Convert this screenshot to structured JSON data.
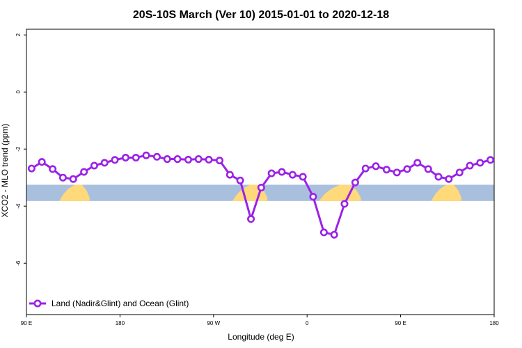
{
  "chart_data": {
    "type": "line",
    "title": "20S-10S March (Ver 10)   2015-01-01 to 2020-12-18",
    "xlabel": "Longitude (deg E)",
    "ylabel": "XCO2 - MLO trend (ppm)",
    "xlim": [
      0,
      100
    ],
    "ylim": [
      -7.8,
      2.2
    ],
    "x_ticks": [
      {
        "value": 0,
        "label": "90 E"
      },
      {
        "value": 20,
        "label": "180"
      },
      {
        "value": 40,
        "label": "90 W"
      },
      {
        "value": 60,
        "label": "0"
      },
      {
        "value": 80,
        "label": "90 E"
      },
      {
        "value": 100,
        "label": "180"
      }
    ],
    "y_ticks": [
      {
        "value": 2,
        "label": "2"
      },
      {
        "value": 0,
        "label": "0"
      },
      {
        "value": -2,
        "label": "-2"
      },
      {
        "value": -4,
        "label": "-4"
      },
      {
        "value": -6,
        "label": "-6"
      }
    ],
    "grid": false,
    "legend": {
      "position": "bottom-left"
    },
    "land_ocean_band": {
      "y_range": [
        -3.82,
        -3.25
      ],
      "ocean_color": "#a9bfde",
      "land_color": "#ffd97a",
      "land_segments": [
        {
          "x_range": [
            7,
            13.5
          ]
        },
        {
          "x_range": [
            44,
            51.5
          ]
        },
        {
          "x_range": [
            62.5,
            71.5
          ]
        },
        {
          "x_range": [
            86.5,
            93
          ]
        }
      ]
    },
    "series": [
      {
        "name": "Land (Nadir&Glint) and Ocean (Glint)",
        "color": "#9b22e6",
        "x": [
          1.1,
          3.3,
          5.6,
          7.8,
          10.0,
          12.3,
          14.5,
          16.7,
          18.9,
          21.2,
          23.4,
          25.6,
          27.9,
          30.1,
          32.3,
          34.6,
          36.8,
          39.0,
          41.3,
          43.5,
          45.7,
          48.0,
          50.2,
          52.4,
          54.6,
          56.9,
          59.1,
          61.3,
          63.6,
          65.8,
          68.0,
          70.3,
          72.5,
          74.7,
          77.0,
          79.2,
          81.4,
          83.6,
          85.9,
          88.1,
          90.3,
          92.6,
          94.8,
          97.0,
          99.2
        ],
        "values": [
          -2.68,
          -2.45,
          -2.7,
          -3.0,
          -3.05,
          -2.8,
          -2.58,
          -2.48,
          -2.38,
          -2.3,
          -2.3,
          -2.22,
          -2.27,
          -2.35,
          -2.35,
          -2.37,
          -2.35,
          -2.37,
          -2.4,
          -2.9,
          -3.1,
          -4.45,
          -3.35,
          -2.85,
          -2.8,
          -2.9,
          -2.97,
          -3.67,
          -4.92,
          -5.0,
          -3.92,
          -3.17,
          -2.68,
          -2.6,
          -2.72,
          -2.82,
          -2.7,
          -2.48,
          -2.7,
          -2.97,
          -3.05,
          -2.82,
          -2.58,
          -2.48,
          -2.38
        ]
      }
    ]
  }
}
